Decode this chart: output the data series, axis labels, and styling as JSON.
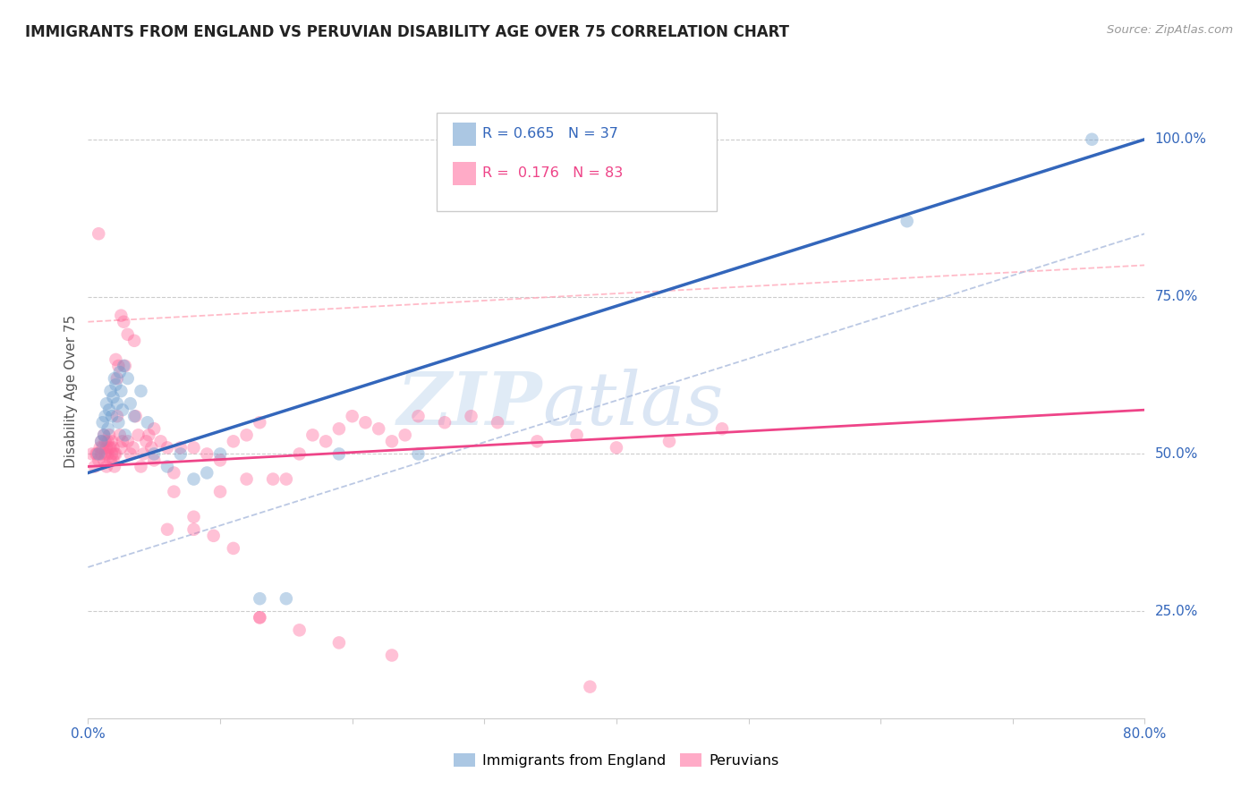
{
  "title": "IMMIGRANTS FROM ENGLAND VS PERUVIAN DISABILITY AGE OVER 75 CORRELATION CHART",
  "source": "Source: ZipAtlas.com",
  "ylabel": "Disability Age Over 75",
  "ytick_labels": [
    "100.0%",
    "75.0%",
    "50.0%",
    "25.0%"
  ],
  "ytick_values": [
    1.0,
    0.75,
    0.5,
    0.25
  ],
  "xlim": [
    0.0,
    0.8
  ],
  "ylim": [
    0.08,
    1.12
  ],
  "R_england": 0.665,
  "N_england": 37,
  "R_peruvian": 0.176,
  "N_peruvian": 83,
  "color_england": "#6699CC",
  "color_peruvian": "#FF6699",
  "line_england": "#3366BB",
  "line_peruvian": "#EE4488",
  "dash_england": "#AABBDD",
  "dash_peruvian": "#FFAABB",
  "legend_label_england": "Immigrants from England",
  "legend_label_peruvian": "Peruvians",
  "watermark_zip": "ZIP",
  "watermark_atlas": "atlas",
  "england_x": [
    0.008,
    0.01,
    0.011,
    0.012,
    0.013,
    0.014,
    0.015,
    0.016,
    0.017,
    0.018,
    0.019,
    0.02,
    0.021,
    0.022,
    0.023,
    0.024,
    0.025,
    0.026,
    0.027,
    0.028,
    0.03,
    0.032,
    0.035,
    0.04,
    0.045,
    0.05,
    0.06,
    0.07,
    0.08,
    0.09,
    0.1,
    0.13,
    0.15,
    0.19,
    0.25,
    0.62,
    0.76
  ],
  "england_y": [
    0.5,
    0.52,
    0.55,
    0.53,
    0.56,
    0.58,
    0.54,
    0.57,
    0.6,
    0.56,
    0.59,
    0.62,
    0.61,
    0.58,
    0.55,
    0.63,
    0.6,
    0.57,
    0.64,
    0.53,
    0.62,
    0.58,
    0.56,
    0.6,
    0.55,
    0.5,
    0.48,
    0.5,
    0.46,
    0.47,
    0.5,
    0.27,
    0.27,
    0.5,
    0.5,
    0.87,
    1.0
  ],
  "peruvian_x": [
    0.003,
    0.005,
    0.006,
    0.007,
    0.008,
    0.009,
    0.01,
    0.01,
    0.011,
    0.012,
    0.012,
    0.013,
    0.013,
    0.014,
    0.014,
    0.015,
    0.015,
    0.016,
    0.016,
    0.017,
    0.017,
    0.018,
    0.018,
    0.019,
    0.019,
    0.02,
    0.02,
    0.021,
    0.021,
    0.022,
    0.022,
    0.023,
    0.024,
    0.025,
    0.026,
    0.027,
    0.028,
    0.03,
    0.032,
    0.034,
    0.036,
    0.038,
    0.04,
    0.042,
    0.044,
    0.046,
    0.048,
    0.05,
    0.055,
    0.06,
    0.065,
    0.07,
    0.08,
    0.09,
    0.1,
    0.11,
    0.12,
    0.13,
    0.15,
    0.16,
    0.17,
    0.18,
    0.19,
    0.2,
    0.21,
    0.22,
    0.23,
    0.24,
    0.25,
    0.27,
    0.29,
    0.31,
    0.34,
    0.37,
    0.4,
    0.44,
    0.48,
    0.13,
    0.06,
    0.08,
    0.1,
    0.12,
    0.14
  ],
  "peruvian_y": [
    0.5,
    0.48,
    0.5,
    0.5,
    0.49,
    0.51,
    0.5,
    0.52,
    0.51,
    0.53,
    0.49,
    0.5,
    0.52,
    0.51,
    0.48,
    0.5,
    0.52,
    0.51,
    0.53,
    0.49,
    0.51,
    0.5,
    0.52,
    0.51,
    0.49,
    0.48,
    0.5,
    0.65,
    0.5,
    0.62,
    0.56,
    0.64,
    0.53,
    0.51,
    0.52,
    0.71,
    0.64,
    0.52,
    0.5,
    0.51,
    0.56,
    0.53,
    0.48,
    0.5,
    0.52,
    0.53,
    0.51,
    0.49,
    0.52,
    0.51,
    0.44,
    0.51,
    0.51,
    0.5,
    0.49,
    0.52,
    0.53,
    0.55,
    0.46,
    0.5,
    0.53,
    0.52,
    0.54,
    0.56,
    0.55,
    0.54,
    0.52,
    0.53,
    0.56,
    0.55,
    0.56,
    0.55,
    0.52,
    0.53,
    0.51,
    0.52,
    0.54,
    0.24,
    0.38,
    0.38,
    0.44,
    0.46,
    0.46
  ],
  "peruvian_extra_x": [
    0.008,
    0.025,
    0.03,
    0.035,
    0.05,
    0.065,
    0.08,
    0.095,
    0.11,
    0.13,
    0.16,
    0.19,
    0.23,
    0.38
  ],
  "peruvian_extra_y": [
    0.85,
    0.72,
    0.69,
    0.68,
    0.54,
    0.47,
    0.4,
    0.37,
    0.35,
    0.24,
    0.22,
    0.2,
    0.18,
    0.13
  ]
}
